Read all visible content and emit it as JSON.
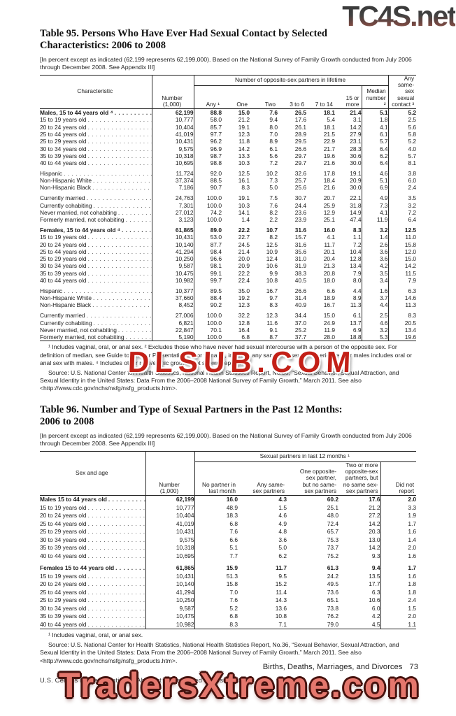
{
  "watermarks": {
    "top_right": "TC4S.net",
    "middle": "DLSUB.COM",
    "bottom": "TradersXtreme.com"
  },
  "t95": {
    "title": "Table 95. Persons Who Have Ever Had Sexual Contact by Selected\nCharacteristics: 2006 to 2008",
    "note": "[In percent except as indicated (62,199 represents 62,199,000). Based on the National Survey of Family Growth conducted from July 2006 through December 2008. See Appendix III]",
    "stub_header": "Characteristic",
    "number_header": "Number\n(1,000)",
    "spanner": "Number of opposite-sex partners in lifetime",
    "col_headers": [
      "Any ¹",
      "One",
      "Two",
      "3 to 6",
      "7 to 14",
      "15 or\nmore",
      "Median\nnumber ²"
    ],
    "samesex_header": "Any\nsame-\nsex\nsexual\ncontact ³",
    "rows": [
      {
        "l": "Males, 15 to 44 years old ⁴",
        "i": 2,
        "b": true,
        "v": [
          "62,199",
          "88.8",
          "15.0",
          "7.6",
          "26.5",
          "18.1",
          "21.4",
          "5.1",
          "5.2"
        ]
      },
      {
        "l": "15 to 19 years old",
        "i": 0,
        "v": [
          "10,777",
          "58.0",
          "21.2",
          "9.4",
          "17.6",
          "5.4",
          "3.1",
          "1.8",
          "2.5"
        ]
      },
      {
        "l": "20 to 24 years old",
        "i": 0,
        "v": [
          "10,404",
          "85.7",
          "19.1",
          "8.0",
          "26.1",
          "18.1",
          "14.2",
          "4.1",
          "5.6"
        ]
      },
      {
        "l": "25 to 44 years old",
        "i": 0,
        "v": [
          "41,019",
          "97.7",
          "12.3",
          "7.0",
          "28.9",
          "21.5",
          "27.9",
          "6.1",
          "5.8"
        ]
      },
      {
        "l": "25 to 29 years old",
        "i": 1,
        "v": [
          "10,431",
          "96.2",
          "11.8",
          "8.9",
          "29.5",
          "22.9",
          "23.1",
          "5.7",
          "5.2"
        ]
      },
      {
        "l": "30 to 34 years old",
        "i": 1,
        "v": [
          "9,575",
          "96.9",
          "14.2",
          "6.1",
          "26.6",
          "21.7",
          "28.3",
          "6.4",
          "4.0"
        ]
      },
      {
        "l": "35 to 39 years old",
        "i": 1,
        "v": [
          "10,318",
          "98.7",
          "13.3",
          "5.6",
          "29.7",
          "19.6",
          "30.6",
          "6.2",
          "5.7"
        ]
      },
      {
        "l": "40 to 44 years old",
        "i": 1,
        "v": [
          "10,695",
          "98.8",
          "10.3",
          "7.2",
          "29.7",
          "21.6",
          "30.0",
          "6.4",
          "8.1"
        ]
      },
      {
        "gap": true
      },
      {
        "l": "Hispanic",
        "i": 0,
        "v": [
          "11,724",
          "92.0",
          "12.5",
          "10.2",
          "32.6",
          "17.8",
          "19.1",
          "4.6",
          "3.8"
        ]
      },
      {
        "l": "Non-Hispanic White",
        "i": 0,
        "v": [
          "37,374",
          "88.5",
          "16.1",
          "7.3",
          "25.7",
          "18.4",
          "20.9",
          "5.1",
          "6.0"
        ]
      },
      {
        "l": "Non-Hispanic Black",
        "i": 0,
        "v": [
          "7,186",
          "90.7",
          "8.3",
          "5.0",
          "25.6",
          "21.6",
          "30.0",
          "6.9",
          "2.4"
        ]
      },
      {
        "gap": true
      },
      {
        "l": "Currently married",
        "i": 0,
        "v": [
          "24,763",
          "100.0",
          "19.1",
          "7.5",
          "30.7",
          "20.7",
          "22.1",
          "4.9",
          "3.5"
        ]
      },
      {
        "l": "Currently cohabiting",
        "i": 0,
        "v": [
          "7,301",
          "100.0",
          "10.3",
          "7.6",
          "24.4",
          "25.9",
          "31.8",
          "7.3",
          "3.2"
        ]
      },
      {
        "l": "Never married, not cohabiting",
        "i": 0,
        "v": [
          "27,012",
          "74.2",
          "14.1",
          "8.2",
          "23.6",
          "12.9",
          "14.9",
          "4.1",
          "7.2"
        ]
      },
      {
        "l": "Formerly married, not cohabiting",
        "i": 0,
        "v": [
          "3,123",
          "100.0",
          "1.4",
          "2.2",
          "23.9",
          "25.1",
          "47.4",
          "11.9",
          "6.4"
        ]
      },
      {
        "gap": true
      },
      {
        "l": "Females, 15 to 44 years old ⁴",
        "i": 2,
        "b": true,
        "v": [
          "61,865",
          "89.0",
          "22.2",
          "10.7",
          "31.6",
          "16.0",
          "8.3",
          "3.2",
          "12.5"
        ]
      },
      {
        "l": "15 to 19 years old",
        "i": 0,
        "v": [
          "10,431",
          "53.0",
          "22.7",
          "8.2",
          "15.7",
          "4.1",
          "1.1",
          "1.4",
          "11.0"
        ]
      },
      {
        "l": "20 to 24 years old",
        "i": 0,
        "v": [
          "10,140",
          "87.7",
          "24.5",
          "12.5",
          "31.6",
          "11.7",
          "7.2",
          "2.6",
          "15.8"
        ]
      },
      {
        "l": "25 to 44 years old",
        "i": 0,
        "v": [
          "41,294",
          "98.4",
          "21.4",
          "10.9",
          "35.6",
          "20.1",
          "10.4",
          "3.6",
          "12.0"
        ]
      },
      {
        "l": "25 to 29 years old",
        "i": 1,
        "v": [
          "10,250",
          "96.6",
          "20.0",
          "12.4",
          "31.0",
          "20.4",
          "12.8",
          "3.6",
          "15.0"
        ]
      },
      {
        "l": "30 to 34 years old",
        "i": 1,
        "v": [
          "9,587",
          "98.1",
          "20.9",
          "10.6",
          "31.9",
          "21.3",
          "13.4",
          "4.2",
          "14.2"
        ]
      },
      {
        "l": "35 to 39 years old",
        "i": 1,
        "v": [
          "10,475",
          "99.1",
          "22.2",
          "9.9",
          "38.3",
          "20.8",
          "7.9",
          "3.5",
          "11.5"
        ]
      },
      {
        "l": "40 to 44 years old",
        "i": 1,
        "v": [
          "10,982",
          "99.7",
          "22.4",
          "10.8",
          "40.5",
          "18.0",
          "8.0",
          "3.4",
          "7.9"
        ]
      },
      {
        "gap": true
      },
      {
        "l": "Hispanic",
        "i": 0,
        "v": [
          "10,377",
          "89.5",
          "35.0",
          "16.7",
          "26.6",
          "6.6",
          "4.4",
          "1.6",
          "6.3"
        ]
      },
      {
        "l": "Non-Hispanic White",
        "i": 0,
        "v": [
          "37,660",
          "88.4",
          "19.2",
          "9.7",
          "31.4",
          "18.9",
          "8.9",
          "3.7",
          "14.6"
        ]
      },
      {
        "l": "Non-Hispanic Black",
        "i": 0,
        "v": [
          "8,452",
          "90.2",
          "12.3",
          "8.3",
          "40.9",
          "16.7",
          "11.3",
          "4.4",
          "11.3"
        ]
      },
      {
        "gap": true
      },
      {
        "l": "Currently married",
        "i": 0,
        "v": [
          "27,006",
          "100.0",
          "32.2",
          "12.3",
          "34.4",
          "15.0",
          "6.1",
          "2.5",
          "8.3"
        ]
      },
      {
        "l": "Currently cohabiting",
        "i": 0,
        "v": [
          "6,821",
          "100.0",
          "12.8",
          "11.6",
          "37.0",
          "24.9",
          "13.7",
          "4.6",
          "20.5"
        ]
      },
      {
        "l": "Never married, not cohabiting",
        "i": 0,
        "v": [
          "22,847",
          "70.1",
          "16.4",
          "9.1",
          "25.2",
          "11.9",
          "6.9",
          "3.2",
          "13.4"
        ]
      },
      {
        "l": "Formerly married, not cohabiting",
        "i": 0,
        "v": [
          "5,190",
          "100.0",
          "6.8",
          "8.7",
          "37.7",
          "28.0",
          "18.8",
          "5.3",
          "19.6"
        ]
      }
    ],
    "footnote": "¹ Includes vaginal, oral, or anal sex. ² Excludes those who have never had sexual intercourse with a person of the opposite sex. For definition of median, see Guide to Tabular Presentation. ³ For females, includes any same-sex sexual experience. For males includes oral or anal sex with males. ⁴ Includes other race/ethnic groups, not shown separately.",
    "source": "Source: U.S. National Center for Health Statistics, National Health Statistics Report, No.36, “Sexual Behavior, Sexual Attraction, and Sexual Identity in the United States: Data From the 2006–2008 National Survey of Family Growth,” March 2011. See also <http://www.cdc.gov/nchs/nsfg/nsfg_products.htm>."
  },
  "t96": {
    "title": "Table 96. Number and Type of Sexual Partners in the Past 12 Months:\n2006 to 2008",
    "note": "[In percent except as indicated (62,199 represents 62,199,000). Based on the National Survey of Family Growth conducted from July 2006 through December 2008. See Appendix III]",
    "stub_header": "Sex and age",
    "number_header": "Number\n(1,000)",
    "spanner": "Sexual partners in last 12 months ¹",
    "col_headers": [
      "No partner in\nlast month",
      "Any same-\nsex partners",
      "One opposite-\nsex partner,\nbut no same-\nsex partners",
      "Two or more\nopposite-sex\npartners, but\nno same sex-\nsex partners",
      "Did not\nreport"
    ],
    "rows": [
      {
        "l": "Males 15 to 44 years old",
        "i": 2,
        "b": true,
        "v": [
          "62,199",
          "16.0",
          "4.3",
          "60.2",
          "17.6",
          "2.0"
        ]
      },
      {
        "l": "15 to 19 years old",
        "i": 0,
        "v": [
          "10,777",
          "48.9",
          "1.5",
          "25.1",
          "21.2",
          "3.3"
        ]
      },
      {
        "l": "20 to 24 years old",
        "i": 0,
        "v": [
          "10,404",
          "18.3",
          "4.6",
          "48.0",
          "27.2",
          "1.9"
        ]
      },
      {
        "l": "25 to 44 years old",
        "i": 0,
        "v": [
          "41,019",
          "6.8",
          "4.9",
          "72.4",
          "14.2",
          "1.7"
        ]
      },
      {
        "l": "25 to 29 years old",
        "i": 1,
        "v": [
          "10,431",
          "7.6",
          "4.8",
          "65.7",
          "20.3",
          "1.6"
        ]
      },
      {
        "l": "30 to 34 years old",
        "i": 1,
        "v": [
          "9,575",
          "6.6",
          "3.6",
          "75.3",
          "13.0",
          "1.4"
        ]
      },
      {
        "l": "35 to 39 years old",
        "i": 1,
        "v": [
          "10,318",
          "5.1",
          "5.0",
          "73.7",
          "14.2",
          "2.0"
        ]
      },
      {
        "l": "40 to 44 years old",
        "i": 1,
        "v": [
          "10,695",
          "7.7",
          "6.2",
          "75.2",
          "9.3",
          "1.6"
        ]
      },
      {
        "gap": true
      },
      {
        "l": "Females 15 to 44 years old",
        "i": 2,
        "b": true,
        "v": [
          "61,865",
          "15.9",
          "11.7",
          "61.3",
          "9.4",
          "1.7"
        ]
      },
      {
        "l": "15 to 19 years old",
        "i": 0,
        "v": [
          "10,431",
          "51.3",
          "9.5",
          "24.2",
          "13.5",
          "1.6"
        ]
      },
      {
        "l": "20 to 24 years old",
        "i": 0,
        "v": [
          "10,140",
          "15.8",
          "15.2",
          "49.5",
          "17.7",
          "1.8"
        ]
      },
      {
        "l": "25 to 44 years old",
        "i": 0,
        "v": [
          "41,294",
          "7.0",
          "11.4",
          "73.6",
          "6.3",
          "1.8"
        ]
      },
      {
        "l": "25 to 29 years old",
        "i": 1,
        "v": [
          "10,250",
          "7.6",
          "14.3",
          "65.1",
          "10.6",
          "2.4"
        ]
      },
      {
        "l": "30 to 34 years old",
        "i": 1,
        "v": [
          "9,587",
          "5.2",
          "13.6",
          "73.8",
          "6.0",
          "1.5"
        ]
      },
      {
        "l": "35 to 39 years old",
        "i": 1,
        "v": [
          "10,475",
          "6.8",
          "10.8",
          "76.2",
          "4.2",
          "2.0"
        ]
      },
      {
        "l": "40 to 44 years old",
        "i": 1,
        "v": [
          "10,982",
          "8.3",
          "7.1",
          "79.0",
          "4.5",
          "1.1"
        ]
      }
    ],
    "footnote": "¹ Includes vaginal, oral, or anal sex.",
    "source": "Source: U.S. National Center for Health Statistics, National Health Statistics Report, No.36, “Sexual Behavior, Sexual Attraction, and Sexual Identity in the United States: Data From the 2006–2008 National Survey of Family Growth,” March 2011. See also <http://www.cdc.gov/nchs/nsfg/nsfg_products.htm>."
  },
  "footer": {
    "section": "Births, Deaths, Marriages, and Divorces",
    "page": "73",
    "bureau": "U.S. Census Bureau, Statistical Abstract of the United States: 2012"
  }
}
